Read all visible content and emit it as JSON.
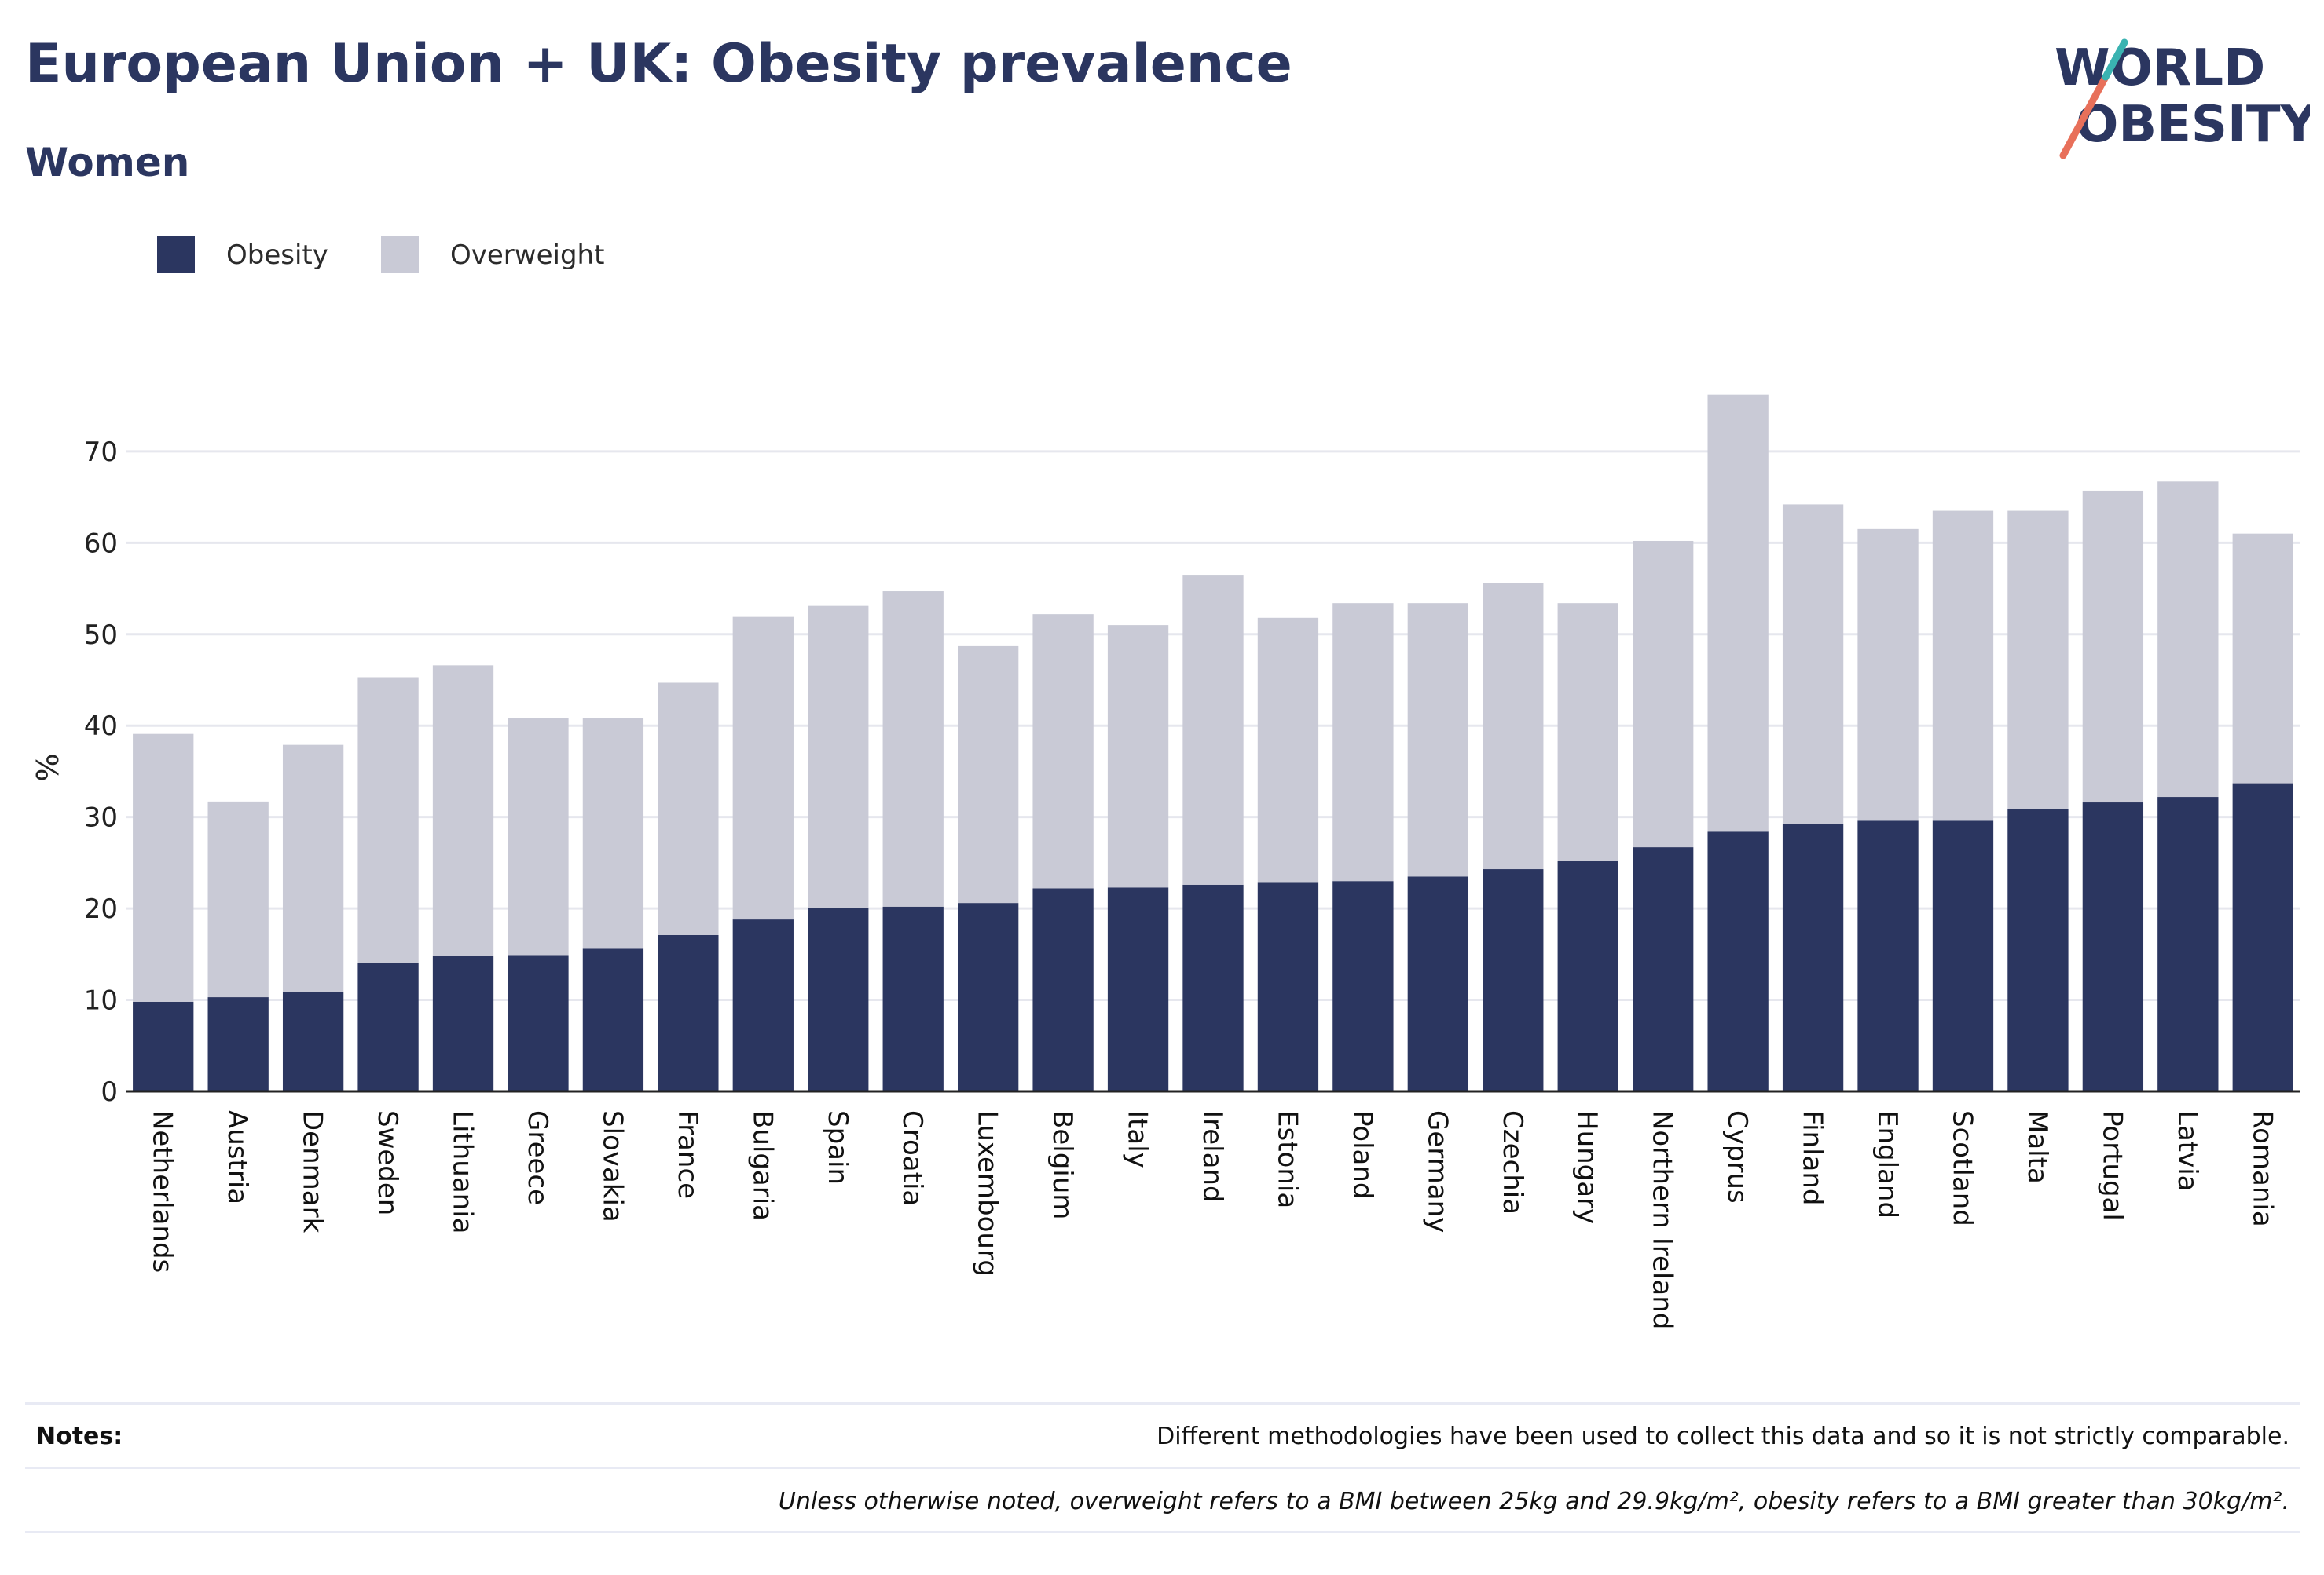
{
  "header": {
    "title": "European Union + UK: Obesity prevalence",
    "subtitle": "Women"
  },
  "logo": {
    "line1": "WORLD",
    "line2": "OBESITY"
  },
  "colors": {
    "obesity": "#2b3660",
    "overweight": "#c9cad6",
    "text": "#2b3660",
    "grid": "#e6e7ee",
    "accent_coral": "#e8705a",
    "accent_teal": "#3ab3b1"
  },
  "chart_data": {
    "type": "bar",
    "stacked": true,
    "categories": [
      "Netherlands",
      "Austria",
      "Denmark",
      "Sweden",
      "Lithuania",
      "Greece",
      "Slovakia",
      "France",
      "Bulgaria",
      "Spain",
      "Croatia",
      "Luxembourg",
      "Belgium",
      "Italy",
      "Ireland",
      "Estonia",
      "Poland",
      "Germany",
      "Czechia",
      "Hungary",
      "Northern Ireland",
      "Cyprus",
      "Finland",
      "England",
      "Scotland",
      "Malta",
      "Portugal",
      "Latvia",
      "Romania"
    ],
    "series": [
      {
        "name": "Obesity",
        "color": "#2b3660",
        "values": [
          9.8,
          10.3,
          10.9,
          14.0,
          14.8,
          14.9,
          15.6,
          17.1,
          18.8,
          20.1,
          20.2,
          20.6,
          22.2,
          22.3,
          22.6,
          22.9,
          23.0,
          23.5,
          24.3,
          25.2,
          26.7,
          28.4,
          29.2,
          29.6,
          29.6,
          30.9,
          31.6,
          32.2,
          33.7
        ]
      },
      {
        "name": "Overweight",
        "color": "#c9cad6",
        "values": [
          29.3,
          21.4,
          27.0,
          31.3,
          31.8,
          25.9,
          25.2,
          27.6,
          33.1,
          33.0,
          34.5,
          28.1,
          30.0,
          28.7,
          33.9,
          28.9,
          30.4,
          29.9,
          31.3,
          28.2,
          33.5,
          47.8,
          35.0,
          31.9,
          33.9,
          32.6,
          34.1,
          34.5,
          27.3
        ]
      }
    ],
    "ylabel": "%",
    "xlabel": "",
    "ylim": [
      0,
      76
    ],
    "yticks": [
      0,
      10,
      20,
      30,
      40,
      50,
      60,
      70
    ],
    "grid": true,
    "legend_position": "top-left"
  },
  "notes": {
    "label": "Notes:",
    "text": "Different methodologies have been used to collect this data and so it is not strictly comparable.",
    "definition": "Unless otherwise noted, overweight refers to a BMI between 25kg and 29.9kg/m², obesity refers to a BMI greater than 30kg/m²."
  }
}
